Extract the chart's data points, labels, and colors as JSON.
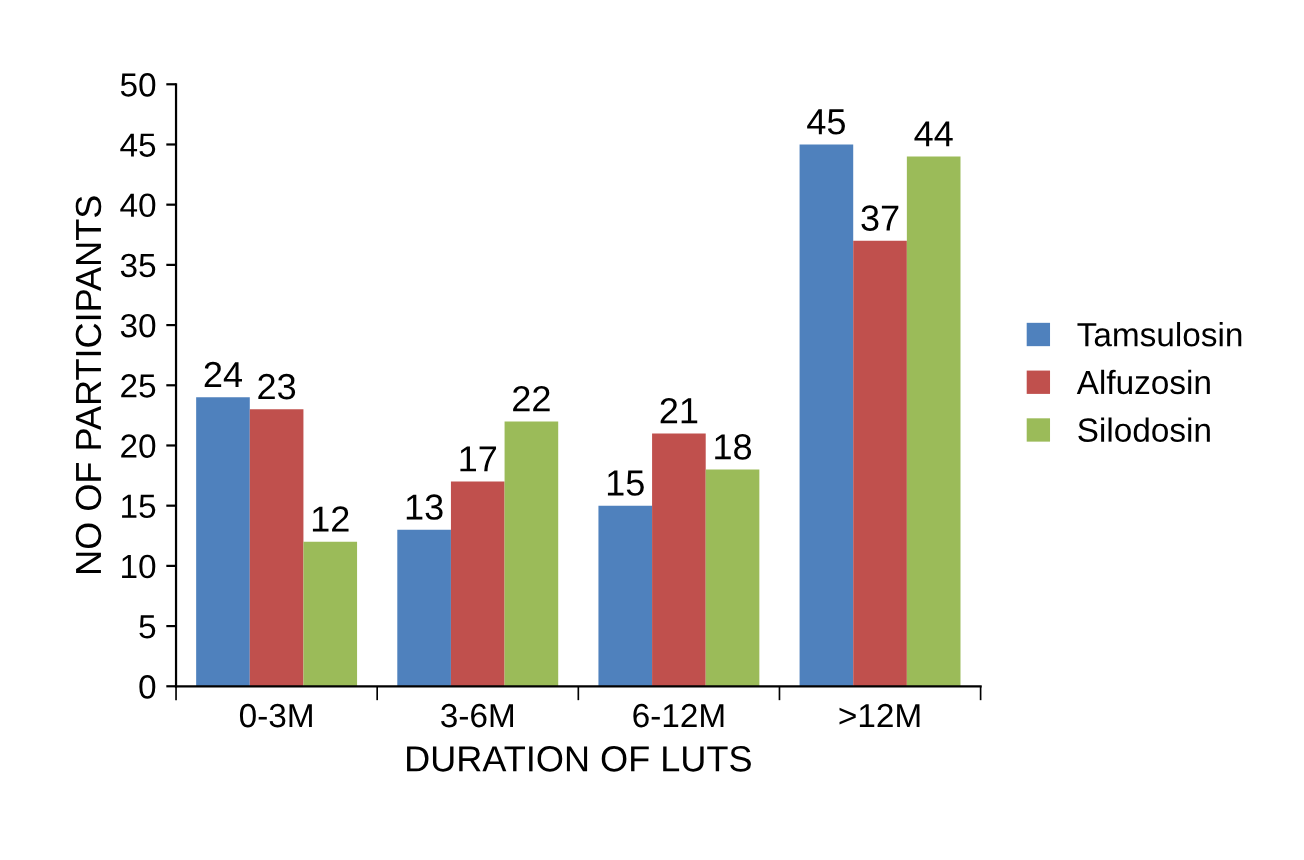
{
  "chart_data": {
    "type": "bar",
    "xlabel": "DURATION OF LUTS",
    "ylabel": "NO OF PARTICIPANTS",
    "categories": [
      "0-3M",
      "3-6M",
      "6-12M",
      ">12M"
    ],
    "series": [
      {
        "name": "Tamsulosin",
        "color": "#4f81bd",
        "values": [
          24,
          13,
          15,
          45
        ]
      },
      {
        "name": "Alfuzosin",
        "color": "#c0504d",
        "values": [
          23,
          17,
          21,
          37
        ]
      },
      {
        "name": "Silodosin",
        "color": "#9bbb59",
        "values": [
          12,
          22,
          18,
          44
        ]
      }
    ],
    "ylim": [
      0,
      50
    ],
    "yticks": [
      0,
      5,
      10,
      15,
      20,
      25,
      30,
      35,
      40,
      45,
      50
    ],
    "data_labels": true,
    "grid": false,
    "legend": "right"
  }
}
